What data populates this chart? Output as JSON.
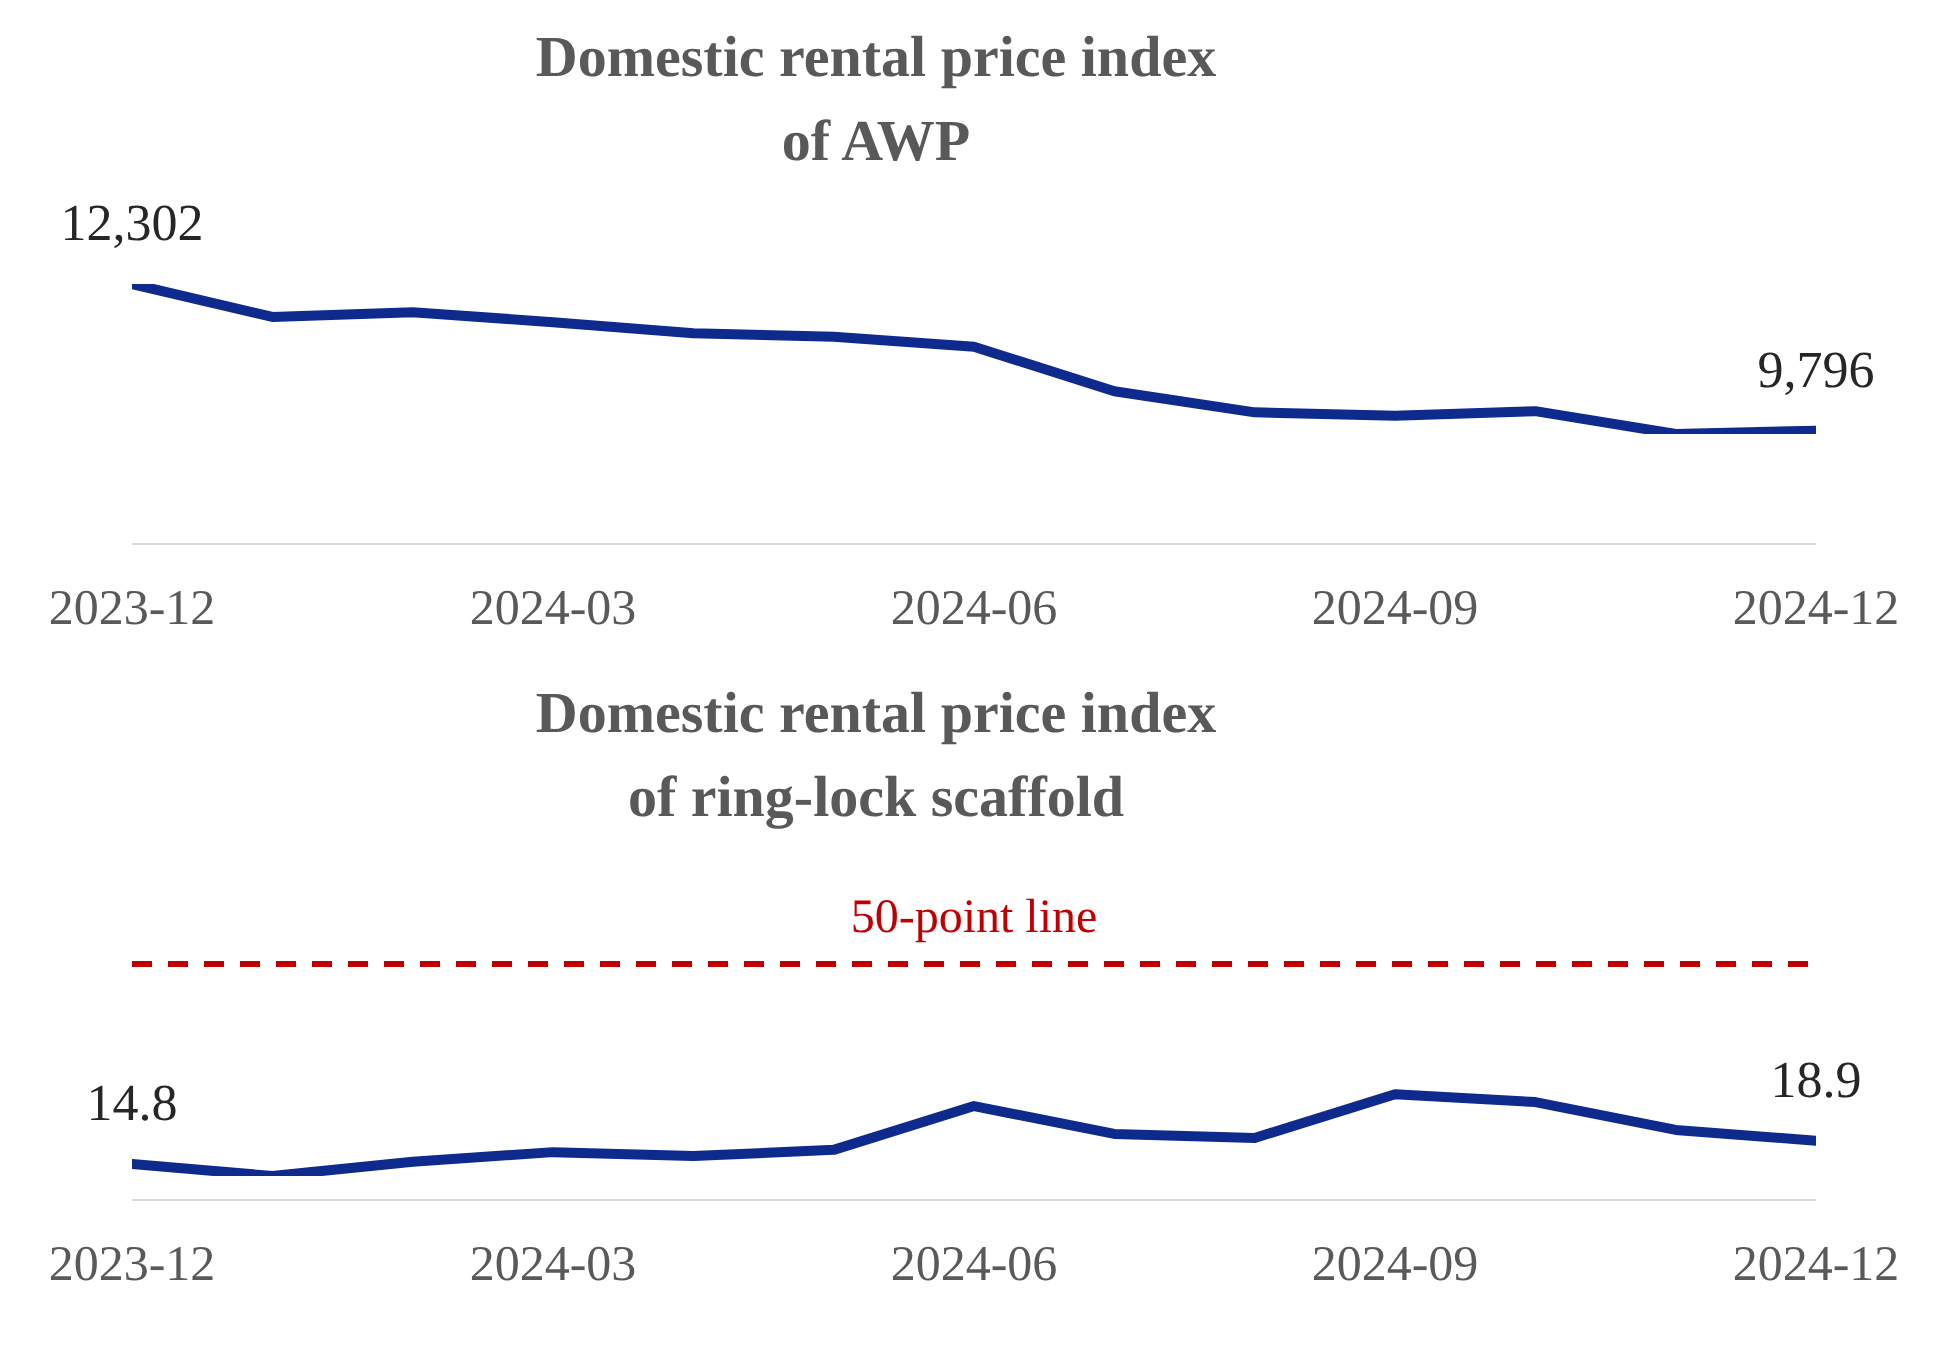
{
  "chart_data": [
    {
      "type": "line",
      "title": "Domestic rental price index\nof AWP",
      "x": [
        "2023-12",
        "2024-01",
        "2024-02",
        "2024-03",
        "2024-04",
        "2024-05",
        "2024-06",
        "2024-07",
        "2024-08",
        "2024-09",
        "2024-10",
        "2024-11",
        "2024-12"
      ],
      "series": [
        {
          "color": "#0d2a8c",
          "values": [
            12302,
            11740,
            11820,
            11650,
            11460,
            11400,
            11230,
            10470,
            10110,
            10050,
            10130,
            9740,
            9796
          ],
          "value_labels": [
            "12,302",
            null,
            null,
            null,
            null,
            null,
            null,
            null,
            null,
            null,
            null,
            null,
            "9,796"
          ]
        }
      ],
      "xlim": [
        "2023-12",
        "2024-12"
      ],
      "xticks": [
        "2023-12",
        "2024-03",
        "2024-06",
        "2024-09",
        "2024-12"
      ],
      "tick_labels": "x",
      "grid": false,
      "legend": false,
      "marker": "none",
      "line_style": "solid"
    },
    {
      "type": "line",
      "title": "Domestic rental price index\nof ring-lock scaffold",
      "x": [
        "2023-12",
        "2024-01",
        "2024-02",
        "2024-03",
        "2024-04",
        "2024-05",
        "2024-06",
        "2024-07",
        "2024-08",
        "2024-09",
        "2024-10",
        "2024-11",
        "2024-12"
      ],
      "series": [
        {
          "color": "#0d2a8c",
          "values": [
            14.8,
            12.7,
            15.2,
            16.9,
            16.2,
            17.3,
            25.0,
            20.1,
            19.4,
            27.1,
            25.7,
            20.8,
            18.9
          ],
          "value_labels": [
            "14.8",
            null,
            null,
            null,
            null,
            null,
            null,
            null,
            null,
            null,
            null,
            null,
            "18.9"
          ]
        }
      ],
      "ref_lines": [
        {
          "axis": "y",
          "value": 50,
          "label": "50-point line",
          "color": "#c00000",
          "line_style": "dashed"
        }
      ],
      "xlim": [
        "2023-12",
        "2024-12"
      ],
      "xticks": [
        "2023-12",
        "2024-03",
        "2024-06",
        "2024-09",
        "2024-12"
      ],
      "tick_labels": "x",
      "grid": false,
      "legend": false,
      "marker": "none",
      "line_style": "solid"
    }
  ]
}
